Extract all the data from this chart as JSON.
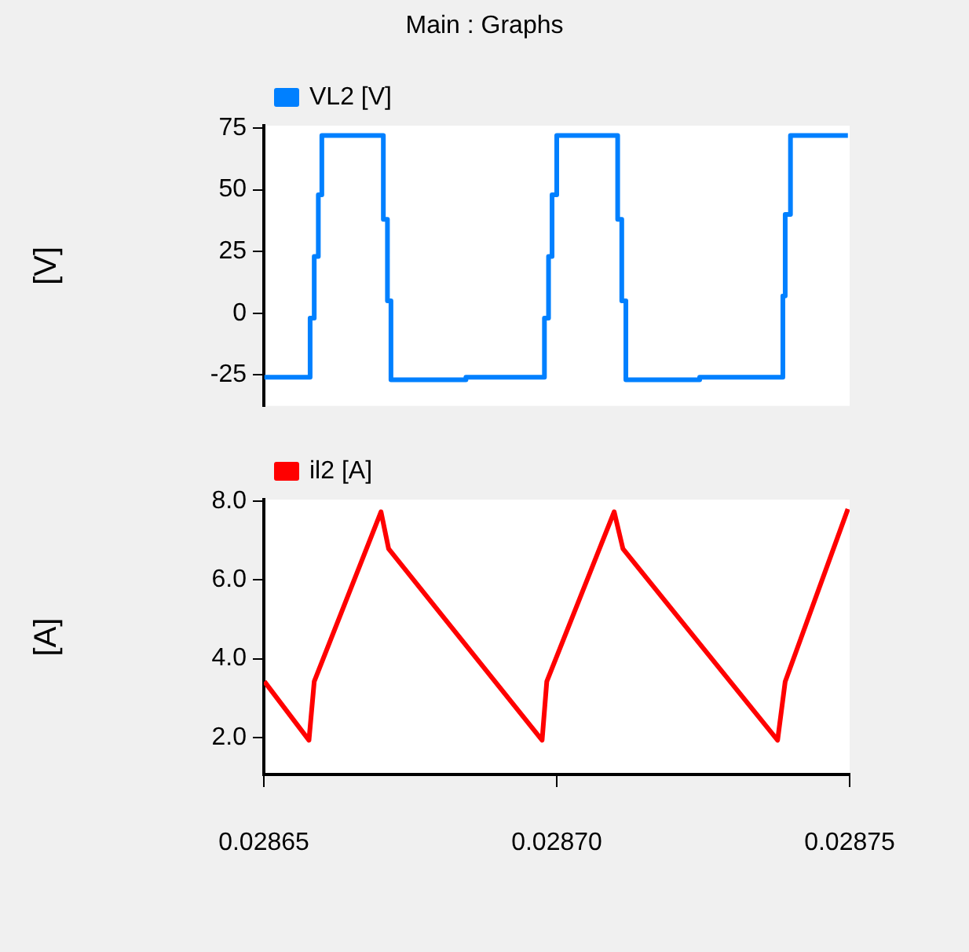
{
  "chart_data": [
    {
      "type": "line",
      "title": "Main : Graphs",
      "ylabel": "[V]",
      "legend": "top left",
      "grid": false,
      "marker": "none",
      "line_style": "solid",
      "tick_labels": "y",
      "xlim": [
        0.02865,
        0.02875
      ],
      "ylim": [
        -37.6,
        76
      ],
      "yticks": [
        -25,
        0,
        25,
        50,
        75
      ],
      "series": [
        {
          "name": "VL2 [V]",
          "color": "#0080ff",
          "x": [
            0.0286501,
            0.0286579,
            0.0286579,
            0.0286586,
            0.0286586,
            0.0286593,
            0.0286593,
            0.0286599,
            0.0286599,
            0.0286704,
            0.0286704,
            0.0286711,
            0.0286711,
            0.0286717,
            0.0286717,
            0.0286845,
            0.0286845,
            0.0286979,
            0.0286979,
            0.0286986,
            0.0286986,
            0.0286992,
            0.0286992,
            0.0287,
            0.0287,
            0.0287104,
            0.0287104,
            0.0287111,
            0.0287111,
            0.0287118,
            0.0287118,
            0.0287244,
            0.0287244,
            0.0287386,
            0.0287386,
            0.028739,
            0.028739,
            0.0287399,
            0.0287399,
            0.0287497
          ],
          "values": [
            -26,
            -26,
            -2,
            -2,
            23,
            23,
            48,
            48,
            72,
            72,
            38,
            38,
            5,
            5,
            -27,
            -27,
            -26,
            -26,
            -2,
            -2,
            23,
            23,
            48,
            48,
            72,
            72,
            38,
            38,
            5,
            5,
            -27,
            -27,
            -26,
            -26,
            7,
            7,
            40,
            40,
            72,
            72
          ]
        }
      ]
    },
    {
      "type": "line",
      "ylabel": "[A]",
      "legend": "top left",
      "grid": false,
      "marker": "none",
      "line_style": "solid",
      "xlim": [
        0.02865,
        0.02875
      ],
      "xticks": [
        0.02865,
        {
          "value": 0.0287,
          "label": "0.02870"
        },
        0.02875
      ],
      "ylim": [
        1.06,
        8.04
      ],
      "yticks": [
        {
          "value": 2,
          "label": "2.0"
        },
        {
          "value": 4,
          "label": "4.0"
        },
        {
          "value": 6,
          "label": "6.0"
        },
        {
          "value": 8,
          "label": "8.0"
        }
      ],
      "series": [
        {
          "name": "il2 [A]",
          "color": "#ff0000",
          "x": [
            0.0286501,
            0.0286577,
            0.0286586,
            0.02867,
            0.0286713,
            0.0286975,
            0.0286983,
            0.0287098,
            0.0287113,
            0.0287377,
            0.028739,
            0.0287497
          ],
          "values": [
            3.42,
            1.93,
            3.42,
            7.73,
            6.79,
            1.93,
            3.42,
            7.73,
            6.79,
            1.93,
            3.42,
            7.8
          ]
        }
      ]
    }
  ]
}
